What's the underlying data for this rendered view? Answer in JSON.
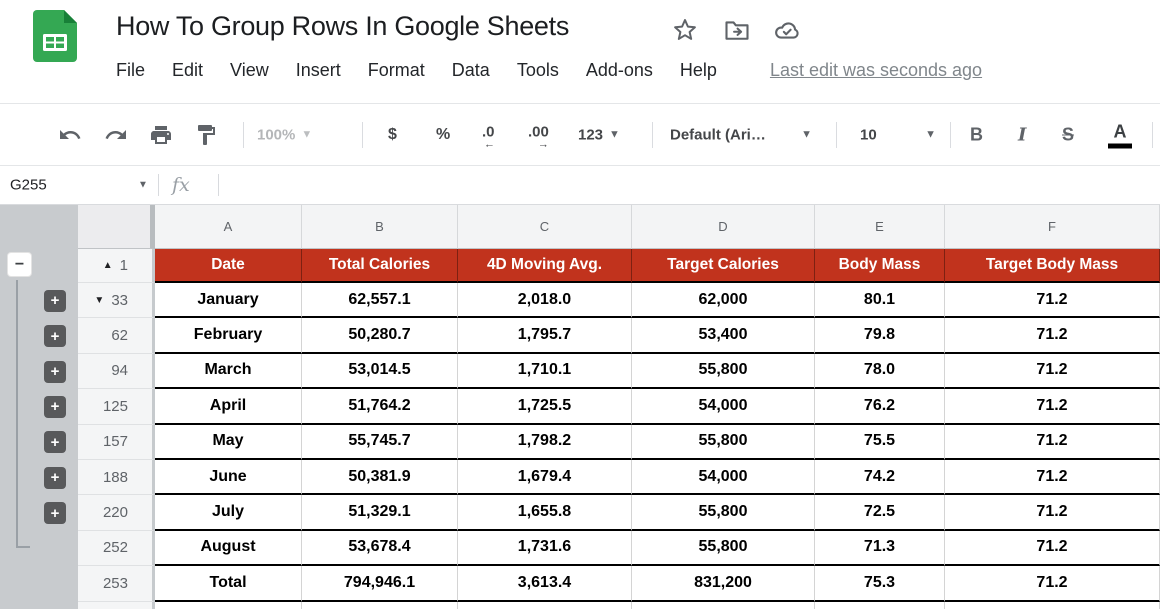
{
  "titlebar": {
    "title": "How To Group Rows In Google Sheets",
    "icons": [
      "star-icon",
      "move-to-folder-icon",
      "cloud-saved-icon"
    ],
    "menu": [
      "File",
      "Edit",
      "View",
      "Insert",
      "Format",
      "Data",
      "Tools",
      "Add-ons",
      "Help"
    ],
    "last_edit": "Last edit was seconds ago"
  },
  "toolbar": {
    "zoom": "100%",
    "currency": "$",
    "percent": "%",
    "decrease_decimal": ".0",
    "increase_decimal": ".00",
    "more_formats": "123",
    "font_family": "Default (Ari…",
    "font_size": "10",
    "bold": "B",
    "italic": "I",
    "strikethrough": "S",
    "text_color": "A"
  },
  "formula_bar": {
    "name_box": "G255",
    "fx_label": "fx"
  },
  "sheet": {
    "column_headers": [
      "A",
      "B",
      "C",
      "D",
      "E",
      "F"
    ],
    "header_row": {
      "row_number": "1",
      "triangle": "up",
      "cells": [
        "Date",
        "Total Calories",
        "4D Moving Avg.",
        "Target Calories",
        "Body Mass",
        "Target Body Mass"
      ]
    },
    "data_rows": [
      {
        "row_number": "33",
        "triangle": "down",
        "expandable": true,
        "cells": [
          "January",
          "62,557.1",
          "2,018.0",
          "62,000",
          "80.1",
          "71.2"
        ]
      },
      {
        "row_number": "62",
        "expandable": true,
        "cells": [
          "February",
          "50,280.7",
          "1,795.7",
          "53,400",
          "79.8",
          "71.2"
        ]
      },
      {
        "row_number": "94",
        "expandable": true,
        "cells": [
          "March",
          "53,014.5",
          "1,710.1",
          "55,800",
          "78.0",
          "71.2"
        ]
      },
      {
        "row_number": "125",
        "expandable": true,
        "cells": [
          "April",
          "51,764.2",
          "1,725.5",
          "54,000",
          "76.2",
          "71.2"
        ]
      },
      {
        "row_number": "157",
        "expandable": true,
        "cells": [
          "May",
          "55,745.7",
          "1,798.2",
          "55,800",
          "75.5",
          "71.2"
        ]
      },
      {
        "row_number": "188",
        "expandable": true,
        "cells": [
          "June",
          "50,381.9",
          "1,679.4",
          "54,000",
          "74.2",
          "71.2"
        ]
      },
      {
        "row_number": "220",
        "expandable": true,
        "cells": [
          "July",
          "51,329.1",
          "1,655.8",
          "55,800",
          "72.5",
          "71.2"
        ]
      },
      {
        "row_number": "252",
        "expandable": false,
        "cells": [
          "August",
          "53,678.4",
          "1,731.6",
          "55,800",
          "71.3",
          "71.2"
        ]
      },
      {
        "row_number": "253",
        "expandable": false,
        "cells": [
          "Total",
          "794,946.1",
          "3,613.4",
          "831,200",
          "75.3",
          "71.2"
        ]
      }
    ],
    "group_controls": {
      "collapse_label": "−",
      "expand_label": "+"
    }
  },
  "colors": {
    "header_red": "#c1331d",
    "logo_green": "#34a853",
    "logo_green_dark": "#188038",
    "icon_gray": "#5f6368",
    "gutter_gray": "#c8cbce",
    "black_border": "#000000"
  }
}
